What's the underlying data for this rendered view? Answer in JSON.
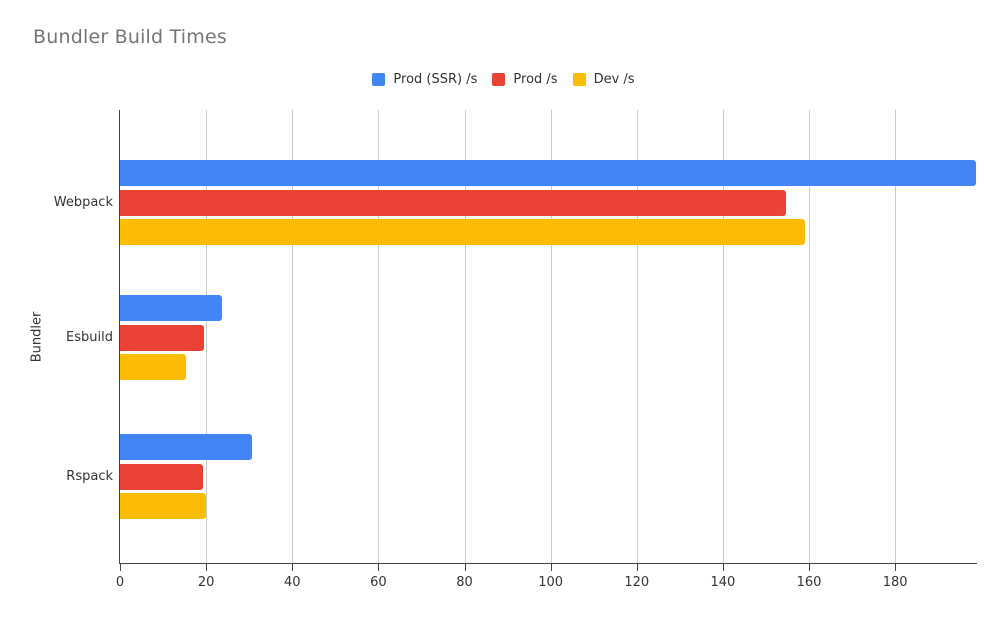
{
  "title": "Bundler Build Times",
  "colors": {
    "series_blue": "#4285F4",
    "series_red": "#EA4335",
    "series_yellow": "#FBBC04",
    "title_text": "#757575",
    "axis_text": "#333333",
    "gridline": "#cccccc",
    "axis_line": "#424242",
    "background": "#ffffff"
  },
  "legend": [
    {
      "label": "Prod (SSR) /s",
      "color": "#4285F4"
    },
    {
      "label": "Prod /s",
      "color": "#EA4335"
    },
    {
      "label": "Dev /s",
      "color": "#FBBC04"
    }
  ],
  "chart_data": {
    "type": "bar",
    "orientation": "horizontal",
    "title": "Bundler Build Times",
    "categories": [
      "Webpack",
      "Esbuild",
      "Rspack"
    ],
    "series": [
      {
        "name": "Prod (SSR) /s",
        "color": "#4285F4",
        "values": [
          198.7,
          23.6,
          30.6
        ]
      },
      {
        "name": "Prod /s",
        "color": "#EA4335",
        "values": [
          154.6,
          19.5,
          19.2
        ]
      },
      {
        "name": "Dev /s",
        "color": "#FBBC04",
        "values": [
          159.1,
          15.3,
          19.9
        ]
      }
    ],
    "xlabel": "",
    "ylabel": "Bundler",
    "x_ticks": [
      0,
      20,
      40,
      60,
      80,
      100,
      120,
      140,
      160,
      180
    ],
    "xlim": [
      0,
      199
    ],
    "grid": true,
    "legend_position": "top"
  }
}
